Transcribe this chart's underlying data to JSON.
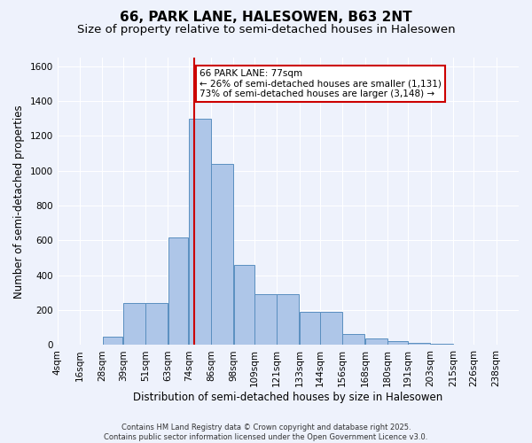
{
  "title": "66, PARK LANE, HALESOWEN, B63 2NT",
  "subtitle": "Size of property relative to semi-detached houses in Halesowen",
  "xlabel": "Distribution of semi-detached houses by size in Halesowen",
  "ylabel": "Number of semi-detached properties",
  "footer": "Contains HM Land Registry data © Crown copyright and database right 2025.\nContains public sector information licensed under the Open Government Licence v3.0.",
  "bin_labels": [
    "4sqm",
    "16sqm",
    "28sqm",
    "39sqm",
    "51sqm",
    "63sqm",
    "74sqm",
    "86sqm",
    "98sqm",
    "109sqm",
    "121sqm",
    "133sqm",
    "144sqm",
    "156sqm",
    "168sqm",
    "180sqm",
    "191sqm",
    "203sqm",
    "215sqm",
    "226sqm",
    "238sqm"
  ],
  "bin_left_edges": [
    4,
    16,
    28,
    39,
    51,
    63,
    74,
    86,
    98,
    109,
    121,
    133,
    144,
    156,
    168,
    180,
    191,
    203,
    215,
    226,
    238
  ],
  "bar_values": [
    0,
    2,
    50,
    240,
    240,
    620,
    1300,
    1040,
    460,
    290,
    290,
    190,
    190,
    65,
    40,
    25,
    15,
    8,
    2,
    0,
    0
  ],
  "bar_color": "#aec6e8",
  "bar_edge_color": "#5a8fc0",
  "highlight_line_color": "#cc0000",
  "property_value": 77,
  "annotation_text": "66 PARK LANE: 77sqm\n← 26% of semi-detached houses are smaller (1,131)\n73% of semi-detached houses are larger (3,148) →",
  "annotation_box_color": "#cc0000",
  "ylim": [
    0,
    1650
  ],
  "yticks": [
    0,
    200,
    400,
    600,
    800,
    1000,
    1200,
    1400,
    1600
  ],
  "background_color": "#eef2fc",
  "grid_color": "#ffffff",
  "title_fontsize": 11,
  "subtitle_fontsize": 9.5,
  "axis_fontsize": 8.5,
  "tick_fontsize": 7.5
}
